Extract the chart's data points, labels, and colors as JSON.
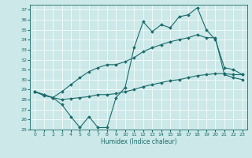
{
  "title": "",
  "xlabel": "Humidex (Indice chaleur)",
  "bg_color": "#cce8e8",
  "line_color": "#1a6b6b",
  "xlim": [
    -0.5,
    23.5
  ],
  "ylim": [
    25,
    37.5
  ],
  "yticks": [
    25,
    26,
    27,
    28,
    29,
    30,
    31,
    32,
    33,
    34,
    35,
    36,
    37
  ],
  "xticks": [
    0,
    1,
    2,
    3,
    4,
    5,
    6,
    7,
    8,
    9,
    10,
    11,
    12,
    13,
    14,
    15,
    16,
    17,
    18,
    19,
    20,
    21,
    22,
    23
  ],
  "line1": [
    28.8,
    28.5,
    28.2,
    27.5,
    26.3,
    25.2,
    26.3,
    25.2,
    25.2,
    28.2,
    29.2,
    33.2,
    35.8,
    34.8,
    35.5,
    35.2,
    36.3,
    36.5,
    37.2,
    35.0,
    34.0,
    31.2,
    31.0,
    30.5
  ],
  "line2": [
    28.8,
    28.5,
    28.2,
    28.8,
    29.5,
    30.2,
    30.8,
    31.2,
    31.5,
    31.5,
    31.8,
    32.2,
    32.8,
    33.2,
    33.5,
    33.8,
    34.0,
    34.2,
    34.5,
    34.2,
    34.2,
    30.5,
    30.2,
    30.0
  ],
  "line3": [
    28.8,
    28.4,
    28.2,
    28.0,
    28.1,
    28.2,
    28.3,
    28.5,
    28.5,
    28.6,
    28.8,
    29.0,
    29.3,
    29.5,
    29.7,
    29.9,
    30.0,
    30.2,
    30.4,
    30.5,
    30.6,
    30.6,
    30.5,
    30.5
  ]
}
